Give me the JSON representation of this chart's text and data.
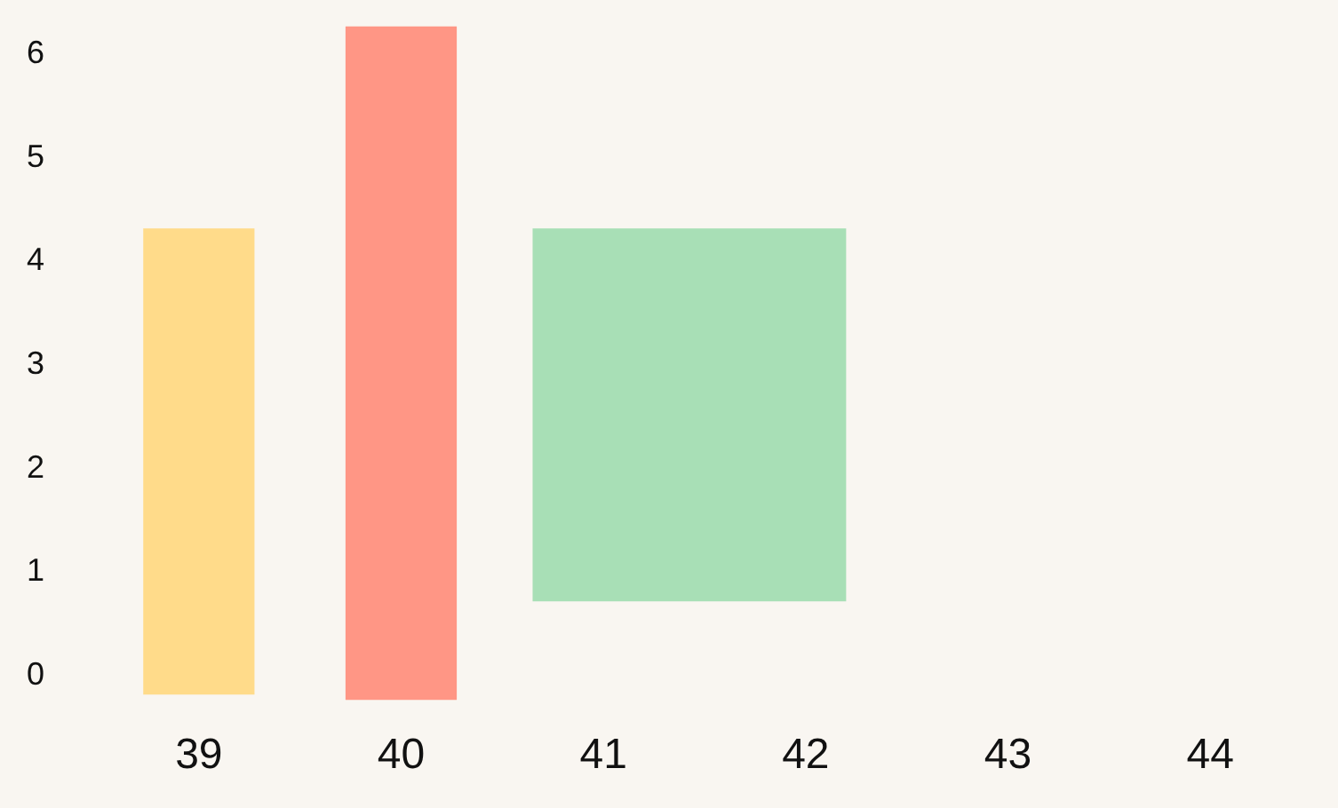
{
  "chart_data": {
    "type": "bar",
    "categories": [
      "39",
      "40",
      "41",
      "42",
      "43",
      "44"
    ],
    "values": [
      4.5,
      6.5,
      3.6,
      3.6,
      null,
      null
    ],
    "base": [
      -0.2,
      -0.25,
      0.7,
      0.7,
      null,
      null
    ],
    "colors": [
      "#ffdb8a",
      "#ff9685",
      "#a8dfb6",
      "#a8dfb6",
      null,
      null
    ],
    "ylim": [
      -0.3,
      6.3
    ],
    "yticks": [
      0,
      1,
      2,
      3,
      4,
      5,
      6
    ],
    "grid": false
  }
}
